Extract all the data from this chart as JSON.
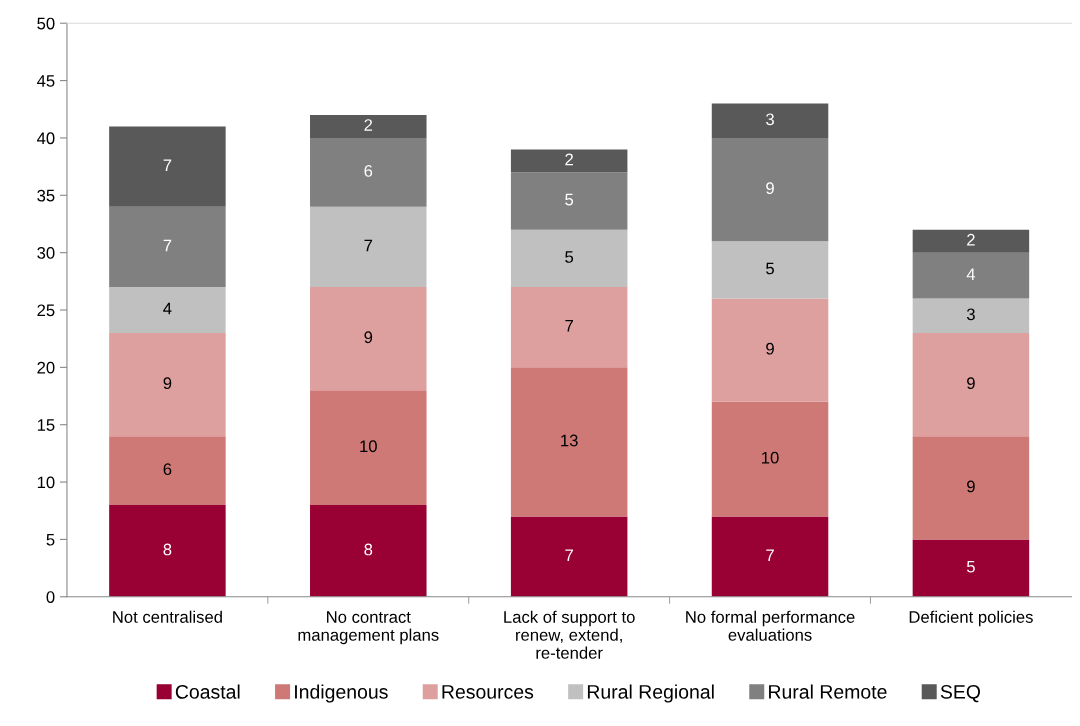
{
  "chart_data": {
    "type": "bar",
    "stacked": true,
    "categories": [
      "Not centralised",
      "No contract management plans",
      "Lack of support to renew, extend, re-tender",
      "No formal performance evaluations",
      "Deficient policies"
    ],
    "series": [
      {
        "name": "Coastal",
        "color": "#990033",
        "values": [
          8,
          8,
          7,
          7,
          5
        ]
      },
      {
        "name": "Indigenous",
        "color": "#cf7977",
        "values": [
          6,
          10,
          13,
          10,
          9
        ]
      },
      {
        "name": "Resources",
        "color": "#dea09f",
        "values": [
          9,
          9,
          7,
          9,
          9
        ]
      },
      {
        "name": "Rural Regional",
        "color": "#c0c0c0",
        "values": [
          4,
          7,
          5,
          5,
          3
        ]
      },
      {
        "name": "Rural Remote",
        "color": "#808080",
        "values": [
          7,
          6,
          5,
          9,
          4
        ]
      },
      {
        "name": "SEQ",
        "color": "#595959",
        "values": [
          7,
          2,
          2,
          3,
          2
        ]
      }
    ],
    "ylim": [
      0,
      50
    ],
    "yticks": [
      0,
      5,
      10,
      15,
      20,
      25,
      30,
      35,
      40,
      45,
      50
    ],
    "data_labels": true,
    "grid": false,
    "legend": "bottom"
  }
}
